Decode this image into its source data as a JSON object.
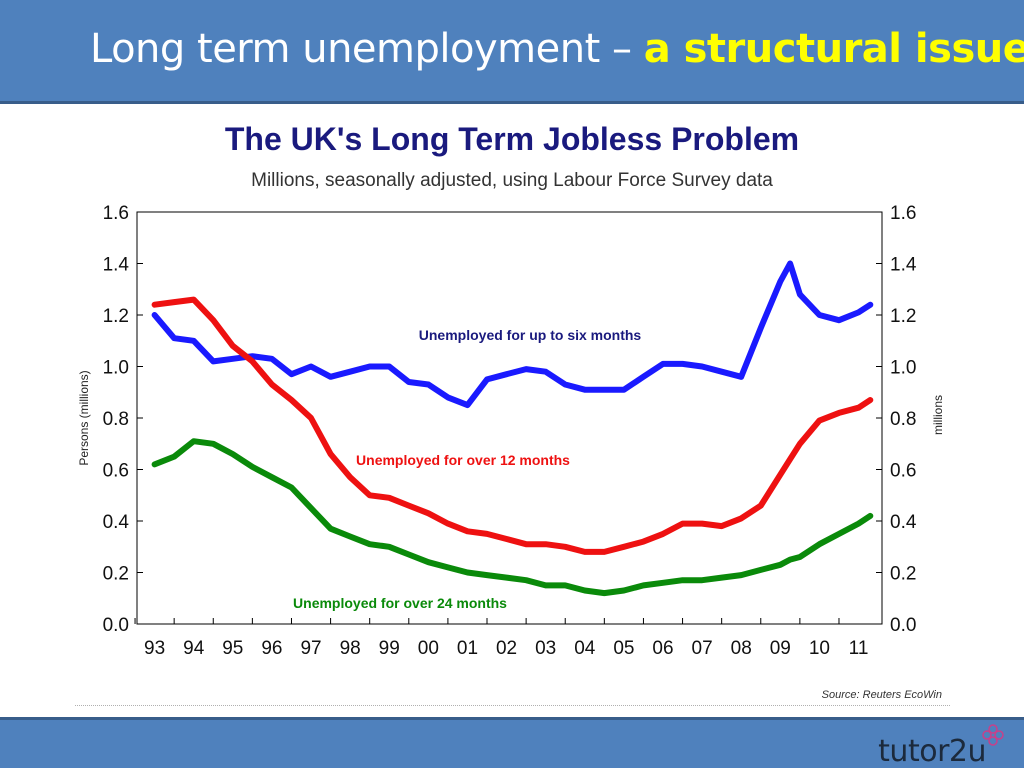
{
  "slide": {
    "title_plain": "Long term unemployment – ",
    "title_highlight": "a structural issue",
    "brand": "tutor2u"
  },
  "chart_data": {
    "type": "line",
    "title": "The UK's Long Term Jobless Problem",
    "subtitle": "Millions, seasonally adjusted, using Labour Force Survey data",
    "ylabel": "Persons (millions)",
    "ylabel_right": "millions",
    "source": "Source: Reuters EcoWin",
    "ylim": [
      0.0,
      1.6
    ],
    "y_ticks": [
      "0.0",
      "0.2",
      "0.4",
      "0.6",
      "0.8",
      "1.0",
      "1.2",
      "1.4",
      "1.6"
    ],
    "x_tick_labels": [
      "93",
      "94",
      "95",
      "96",
      "97",
      "98",
      "99",
      "00",
      "01",
      "02",
      "03",
      "04",
      "05",
      "06",
      "07",
      "08",
      "09",
      "10",
      "11"
    ],
    "x": [
      1993.0,
      1993.5,
      1994.0,
      1994.5,
      1995.0,
      1995.5,
      1996.0,
      1996.5,
      1997.0,
      1997.5,
      1998.0,
      1998.5,
      1999.0,
      1999.5,
      2000.0,
      2000.5,
      2001.0,
      2001.5,
      2002.0,
      2002.5,
      2003.0,
      2003.5,
      2004.0,
      2004.5,
      2005.0,
      2005.5,
      2006.0,
      2006.5,
      2007.0,
      2007.5,
      2008.0,
      2008.5,
      2009.0,
      2009.25,
      2009.5,
      2010.0,
      2010.5,
      2011.0,
      2011.3
    ],
    "grid": false,
    "series": [
      {
        "name": "Unemployed for up to six months",
        "color": "#1a1aff",
        "values": [
          1.2,
          1.11,
          1.1,
          1.02,
          1.03,
          1.04,
          1.03,
          0.97,
          1.0,
          0.96,
          0.98,
          1.0,
          1.0,
          0.94,
          0.93,
          0.88,
          0.85,
          0.95,
          0.97,
          0.99,
          0.98,
          0.93,
          0.91,
          0.91,
          0.91,
          0.96,
          1.01,
          1.01,
          1.0,
          0.98,
          0.96,
          1.15,
          1.33,
          1.4,
          1.28,
          1.2,
          1.18,
          1.21,
          1.24
        ]
      },
      {
        "name": "Unemployed for over 12 months",
        "color": "#ee1111",
        "values": [
          1.24,
          1.25,
          1.26,
          1.18,
          1.08,
          1.02,
          0.93,
          0.87,
          0.8,
          0.66,
          0.57,
          0.5,
          0.49,
          0.46,
          0.43,
          0.39,
          0.36,
          0.35,
          0.33,
          0.31,
          0.31,
          0.3,
          0.28,
          0.28,
          0.3,
          0.32,
          0.35,
          0.39,
          0.39,
          0.38,
          0.41,
          0.46,
          0.58,
          0.64,
          0.7,
          0.79,
          0.82,
          0.84,
          0.87
        ]
      },
      {
        "name": "Unemployed for over 24 months",
        "color": "#0a8a0a",
        "values": [
          0.62,
          0.65,
          0.71,
          0.7,
          0.66,
          0.61,
          0.57,
          0.53,
          0.45,
          0.37,
          0.34,
          0.31,
          0.3,
          0.27,
          0.24,
          0.22,
          0.2,
          0.19,
          0.18,
          0.17,
          0.15,
          0.15,
          0.13,
          0.12,
          0.13,
          0.15,
          0.16,
          0.17,
          0.17,
          0.18,
          0.19,
          0.21,
          0.23,
          0.25,
          0.26,
          0.31,
          0.35,
          0.39,
          0.42
        ]
      }
    ]
  }
}
